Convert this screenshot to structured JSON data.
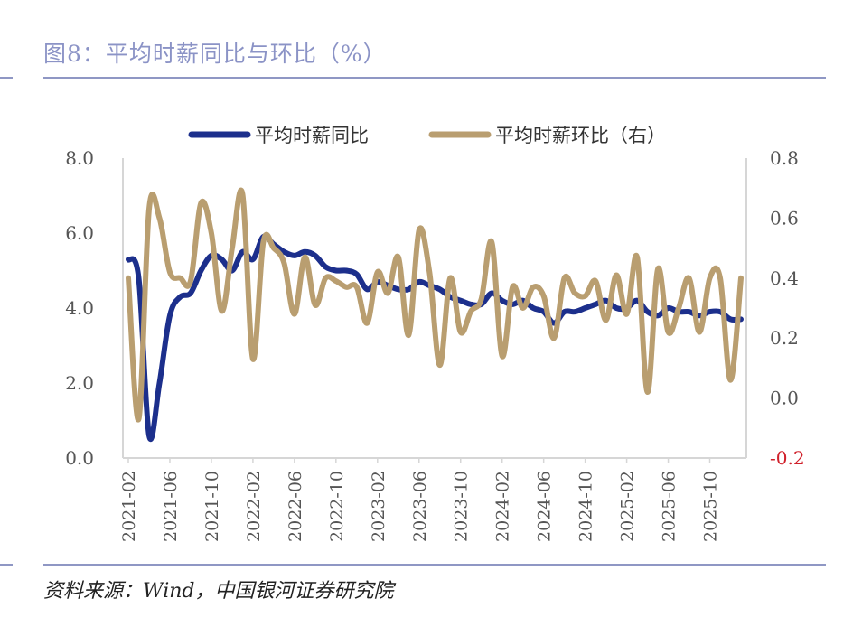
{
  "title": "图8：平均时薪同比与环比（%）",
  "source": "资料来源：Wind，中国银河证券研究院",
  "colors": {
    "yoy": "#1c2f8c",
    "mom": "#b99e70",
    "neg": "#d0202a",
    "axis": "#d6d6d6",
    "text": "#555555"
  },
  "chart_data": {
    "type": "line",
    "legend_position": "top",
    "x": [
      "2021-02",
      "2021-03",
      "2021-04",
      "2021-05",
      "2021-06",
      "2021-07",
      "2021-08",
      "2021-09",
      "2021-10",
      "2021-11",
      "2021-12",
      "2022-01",
      "2022-02",
      "2022-03",
      "2022-04",
      "2022-05",
      "2022-06",
      "2022-07",
      "2022-08",
      "2022-09",
      "2022-10",
      "2022-11",
      "2022-12",
      "2023-01",
      "2023-02",
      "2023-03",
      "2023-04",
      "2023-05",
      "2023-06",
      "2023-07",
      "2023-08",
      "2023-09",
      "2023-10",
      "2023-11",
      "2023-12",
      "2024-01",
      "2024-02",
      "2024-03",
      "2024-04",
      "2024-05",
      "2024-06",
      "2024-07",
      "2024-08",
      "2024-09",
      "2024-10",
      "2024-11",
      "2024-12",
      "2025-01",
      "2025-02",
      "2025-03",
      "2025-04",
      "2025-05",
      "2025-06",
      "2025-07",
      "2025-08",
      "2025-09",
      "2025-10",
      "2025-11",
      "2025-12",
      "2026-01"
    ],
    "x_tick_labels": [
      "2021-02",
      "2021-06",
      "2021-10",
      "2022-02",
      "2022-06",
      "2022-10",
      "2023-02",
      "2023-06",
      "2023-10",
      "2024-02",
      "2024-06",
      "2024-10",
      "2025-02",
      "2025-06",
      "2025-10"
    ],
    "series": [
      {
        "name": "平均时薪同比",
        "axis": "left",
        "values": [
          5.3,
          4.8,
          0.6,
          2.0,
          3.8,
          4.3,
          4.4,
          5.0,
          5.4,
          5.3,
          5.0,
          5.5,
          5.3,
          5.9,
          5.7,
          5.5,
          5.4,
          5.5,
          5.4,
          5.1,
          5.0,
          5.0,
          4.9,
          4.5,
          4.7,
          4.6,
          4.5,
          4.5,
          4.7,
          4.6,
          4.5,
          4.3,
          4.2,
          4.1,
          4.1,
          4.4,
          4.2,
          4.1,
          4.2,
          4.0,
          3.9,
          3.6,
          3.9,
          3.9,
          4.0,
          4.1,
          4.2,
          4.0,
          4.0,
          4.2,
          3.9,
          3.8,
          4.0,
          3.9,
          3.9,
          3.8,
          3.9,
          3.9,
          3.7,
          3.7
        ]
      },
      {
        "name": "平均时薪环比（右）",
        "axis": "right",
        "values": [
          0.4,
          -0.07,
          0.63,
          0.6,
          0.42,
          0.4,
          0.39,
          0.65,
          0.55,
          0.29,
          0.5,
          0.68,
          0.13,
          0.52,
          0.5,
          0.45,
          0.28,
          0.47,
          0.31,
          0.4,
          0.39,
          0.37,
          0.37,
          0.25,
          0.42,
          0.35,
          0.47,
          0.21,
          0.56,
          0.42,
          0.11,
          0.4,
          0.22,
          0.29,
          0.33,
          0.52,
          0.14,
          0.37,
          0.3,
          0.37,
          0.34,
          0.2,
          0.4,
          0.35,
          0.34,
          0.39,
          0.26,
          0.41,
          0.28,
          0.47,
          0.02,
          0.43,
          0.22,
          0.3,
          0.4,
          0.22,
          0.4,
          0.4,
          0.06,
          0.4
        ]
      }
    ],
    "y_left": {
      "lim": [
        0,
        8
      ],
      "ticks": [
        "0.0",
        "2.0",
        "4.0",
        "6.0",
        "8.0"
      ]
    },
    "y_right": {
      "lim": [
        -0.2,
        0.8
      ],
      "ticks": [
        "-0.2",
        "0.0",
        "0.2",
        "0.4",
        "0.6",
        "0.8"
      ]
    },
    "grid": false
  }
}
